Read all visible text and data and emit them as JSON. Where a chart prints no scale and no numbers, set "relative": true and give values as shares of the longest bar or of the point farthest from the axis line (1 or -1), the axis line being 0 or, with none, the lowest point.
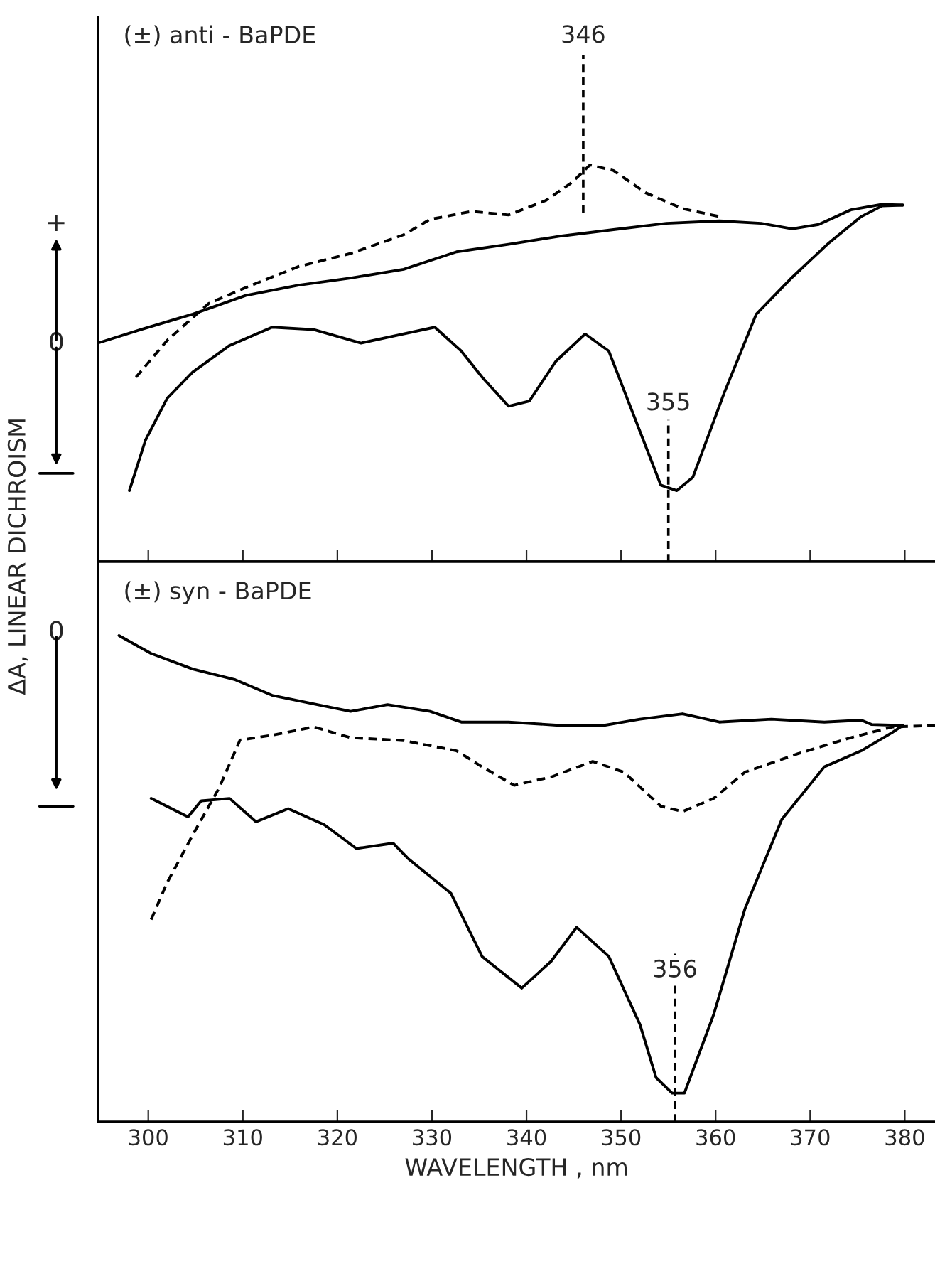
{
  "chart_data": [
    {
      "type": "line",
      "title": "(±) anti - BaPDE",
      "ylabel": "ΔA, LINEAR DICHROISM",
      "relative": true,
      "tick_labels": false,
      "annotations": [
        "+",
        "0"
      ],
      "xlim": [
        294.7,
        383.2
      ],
      "xticks": [
        300,
        310,
        320,
        330,
        340,
        350,
        360,
        370,
        380
      ],
      "ref_lines": [
        {
          "axis": "x",
          "value": 346,
          "label": "346",
          "line_style": "dashed"
        },
        {
          "axis": "x",
          "value": 355,
          "label": "355",
          "line_style": "dashed"
        }
      ],
      "series": [
        {
          "color": "#000000",
          "line_style": "solid",
          "x": [
            294.8,
            299.2,
            304.7,
            310.3,
            315.9,
            321.4,
            327.0,
            332.6,
            338.1,
            343.7,
            349.2,
            354.8,
            360.4,
            364.8,
            368.1,
            370.9,
            374.3,
            377.6,
            379.8
          ],
          "values": [
            0.552,
            0.585,
            0.624,
            0.671,
            0.697,
            0.715,
            0.737,
            0.781,
            0.8,
            0.821,
            0.837,
            0.853,
            0.859,
            0.853,
            0.839,
            0.85,
            0.887,
            0.901,
            0.899
          ]
        },
        {
          "color": "#000000",
          "line_style": "dashed",
          "x": [
            298.7,
            302.0,
            306.4,
            310.3,
            315.9,
            321.4,
            327.0,
            329.8,
            334.2,
            338.1,
            342.0,
            344.8,
            346.7,
            349.2,
            352.6,
            356.5,
            360.4
          ],
          "values": [
            0.465,
            0.558,
            0.651,
            0.691,
            0.744,
            0.777,
            0.824,
            0.863,
            0.883,
            0.874,
            0.91,
            0.956,
            1.0,
            0.986,
            0.93,
            0.89,
            0.87
          ]
        },
        {
          "color": "#000000",
          "line_style": "solid",
          "x": [
            298.0,
            299.7,
            302.0,
            304.7,
            308.6,
            313.1,
            317.5,
            322.5,
            326.4,
            330.3,
            333.1,
            335.3,
            338.1,
            340.3,
            343.1,
            346.2,
            348.7,
            351.5,
            354.2,
            355.9,
            357.6,
            360.9,
            364.3,
            368.1,
            372.0,
            375.4,
            377.6,
            379.8
          ],
          "values": [
            0.179,
            0.306,
            0.412,
            0.478,
            0.545,
            0.591,
            0.585,
            0.551,
            0.571,
            0.591,
            0.531,
            0.465,
            0.392,
            0.405,
            0.505,
            0.574,
            0.531,
            0.359,
            0.193,
            0.179,
            0.213,
            0.425,
            0.624,
            0.717,
            0.804,
            0.87,
            0.897,
            0.899
          ]
        }
      ]
    },
    {
      "type": "line",
      "title": "(±) syn - BaPDE",
      "xlabel": "WAVELENGTH , nm",
      "relative": true,
      "tick_labels": "x",
      "annotations": [
        "0"
      ],
      "xlim": [
        294.7,
        383.2
      ],
      "xticks": [
        300,
        310,
        320,
        330,
        340,
        350,
        360,
        370,
        380
      ],
      "ref_lines": [
        {
          "axis": "x",
          "value": 355.7,
          "label": "356",
          "line_style": "dashed"
        }
      ],
      "series": [
        {
          "color": "#000000",
          "line_style": "solid",
          "x": [
            296.9,
            300.3,
            304.7,
            309.2,
            313.1,
            318.6,
            321.4,
            325.3,
            329.8,
            333.1,
            338.1,
            343.7,
            348.1,
            352.0,
            356.5,
            360.4,
            365.9,
            371.5,
            375.4,
            376.5,
            379.8
          ],
          "values": [
            1.0,
            0.963,
            0.931,
            0.909,
            0.877,
            0.855,
            0.844,
            0.858,
            0.844,
            0.822,
            0.822,
            0.815,
            0.815,
            0.828,
            0.839,
            0.822,
            0.828,
            0.822,
            0.826,
            0.817,
            0.815
          ]
        },
        {
          "color": "#000000",
          "line_style": "dashed",
          "x": [
            300.3,
            302.0,
            304.7,
            307.5,
            309.7,
            313.1,
            317.5,
            321.4,
            327.0,
            332.6,
            335.3,
            338.7,
            342.6,
            347.0,
            350.3,
            354.2,
            356.5,
            359.8,
            363.1,
            368.7,
            374.3,
            378.7,
            383.2
          ],
          "values": [
            0.416,
            0.492,
            0.59,
            0.687,
            0.785,
            0.795,
            0.812,
            0.79,
            0.784,
            0.763,
            0.73,
            0.692,
            0.709,
            0.741,
            0.719,
            0.649,
            0.638,
            0.665,
            0.719,
            0.757,
            0.79,
            0.812,
            0.815
          ]
        },
        {
          "color": "#000000",
          "line_style": "solid",
          "x": [
            300.3,
            304.2,
            305.6,
            308.6,
            311.4,
            314.8,
            318.6,
            322.0,
            325.9,
            327.5,
            332.0,
            335.3,
            339.5,
            342.6,
            345.3,
            348.7,
            352.0,
            353.7,
            355.4,
            356.7,
            359.8,
            363.1,
            367.0,
            371.5,
            375.4,
            378.7,
            379.8
          ],
          "values": [
            0.665,
            0.627,
            0.66,
            0.665,
            0.617,
            0.644,
            0.611,
            0.562,
            0.573,
            0.541,
            0.47,
            0.34,
            0.275,
            0.33,
            0.4,
            0.34,
            0.2,
            0.091,
            0.059,
            0.059,
            0.221,
            0.438,
            0.622,
            0.73,
            0.763,
            0.801,
            0.815
          ]
        }
      ]
    }
  ]
}
